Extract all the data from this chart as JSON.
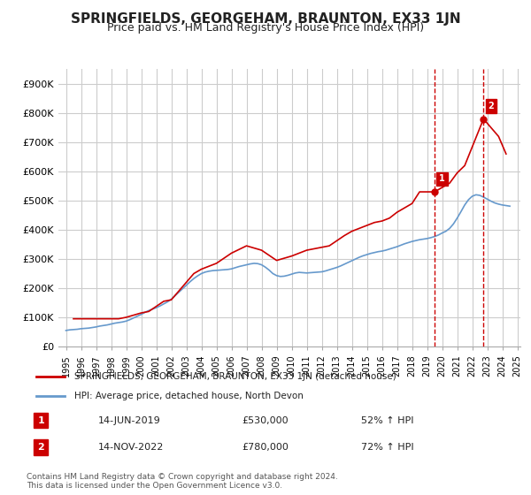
{
  "title": "SPRINGFIELDS, GEORGEHAM, BRAUNTON, EX33 1JN",
  "subtitle": "Price paid vs. HM Land Registry's House Price Index (HPI)",
  "title_fontsize": 11,
  "subtitle_fontsize": 9,
  "background_color": "#ffffff",
  "plot_bg_color": "#ffffff",
  "grid_color": "#cccccc",
  "red_line_color": "#cc0000",
  "blue_line_color": "#6699cc",
  "dashed_vline_color": "#cc0000",
  "annotation_box_color": "#cc0000",
  "legend_label_red": "SPRINGFIELDS, GEORGEHAM, BRAUNTON, EX33 1JN (detached house)",
  "legend_label_blue": "HPI: Average price, detached house, North Devon",
  "annotation1_label": "1",
  "annotation1_date": "14-JUN-2019",
  "annotation1_price": "£530,000",
  "annotation1_hpi": "52% ↑ HPI",
  "annotation2_label": "2",
  "annotation2_date": "14-NOV-2022",
  "annotation2_price": "£780,000",
  "annotation2_hpi": "72% ↑ HPI",
  "footer": "Contains HM Land Registry data © Crown copyright and database right 2024.\nThis data is licensed under the Open Government Licence v3.0.",
  "ylim": [
    0,
    950000
  ],
  "yticks": [
    0,
    100000,
    200000,
    300000,
    400000,
    500000,
    600000,
    700000,
    800000,
    900000
  ],
  "ytick_labels": [
    "£0",
    "£100K",
    "£200K",
    "£300K",
    "£400K",
    "£500K",
    "£600K",
    "£700K",
    "£800K",
    "£900K"
  ],
  "hpi_x": [
    1995.0,
    1995.25,
    1995.5,
    1995.75,
    1996.0,
    1996.25,
    1996.5,
    1996.75,
    1997.0,
    1997.25,
    1997.5,
    1997.75,
    1998.0,
    1998.25,
    1998.5,
    1998.75,
    1999.0,
    1999.25,
    1999.5,
    1999.75,
    2000.0,
    2000.25,
    2000.5,
    2000.75,
    2001.0,
    2001.25,
    2001.5,
    2001.75,
    2002.0,
    2002.25,
    2002.5,
    2002.75,
    2003.0,
    2003.25,
    2003.5,
    2003.75,
    2004.0,
    2004.25,
    2004.5,
    2004.75,
    2005.0,
    2005.25,
    2005.5,
    2005.75,
    2006.0,
    2006.25,
    2006.5,
    2006.75,
    2007.0,
    2007.25,
    2007.5,
    2007.75,
    2008.0,
    2008.25,
    2008.5,
    2008.75,
    2009.0,
    2009.25,
    2009.5,
    2009.75,
    2010.0,
    2010.25,
    2010.5,
    2010.75,
    2011.0,
    2011.25,
    2011.5,
    2011.75,
    2012.0,
    2012.25,
    2012.5,
    2012.75,
    2013.0,
    2013.25,
    2013.5,
    2013.75,
    2014.0,
    2014.25,
    2014.5,
    2014.75,
    2015.0,
    2015.25,
    2015.5,
    2015.75,
    2016.0,
    2016.25,
    2016.5,
    2016.75,
    2017.0,
    2017.25,
    2017.5,
    2017.75,
    2018.0,
    2018.25,
    2018.5,
    2018.75,
    2019.0,
    2019.25,
    2019.5,
    2019.75,
    2020.0,
    2020.25,
    2020.5,
    2020.75,
    2021.0,
    2021.25,
    2021.5,
    2021.75,
    2022.0,
    2022.25,
    2022.5,
    2022.75,
    2023.0,
    2023.25,
    2023.5,
    2023.75,
    2024.0,
    2024.25,
    2024.5
  ],
  "hpi_y": [
    55000,
    57000,
    58000,
    59000,
    61000,
    62000,
    63000,
    65000,
    67000,
    70000,
    72000,
    74000,
    77000,
    80000,
    82000,
    84000,
    87000,
    92000,
    98000,
    104000,
    110000,
    117000,
    123000,
    128000,
    133000,
    139000,
    146000,
    153000,
    162000,
    174000,
    186000,
    198000,
    210000,
    222000,
    233000,
    242000,
    250000,
    255000,
    258000,
    260000,
    261000,
    262000,
    263000,
    264000,
    266000,
    270000,
    274000,
    277000,
    280000,
    283000,
    285000,
    284000,
    280000,
    272000,
    262000,
    250000,
    243000,
    240000,
    241000,
    244000,
    248000,
    252000,
    254000,
    253000,
    252000,
    253000,
    254000,
    255000,
    256000,
    259000,
    263000,
    267000,
    271000,
    276000,
    282000,
    288000,
    294000,
    300000,
    306000,
    311000,
    315000,
    319000,
    322000,
    325000,
    327000,
    330000,
    334000,
    338000,
    342000,
    347000,
    352000,
    356000,
    360000,
    363000,
    366000,
    368000,
    370000,
    373000,
    377000,
    382000,
    389000,
    395000,
    405000,
    420000,
    440000,
    462000,
    485000,
    503000,
    515000,
    520000,
    518000,
    512000,
    505000,
    498000,
    492000,
    488000,
    485000,
    483000,
    481000
  ],
  "price_x": [
    1995.5,
    1998.5,
    1999.0,
    2000.0,
    2000.5,
    2001.5,
    2002.0,
    2003.5,
    2004.0,
    2005.0,
    2006.0,
    2007.0,
    2008.0,
    2009.0,
    2010.0,
    2011.0,
    2011.5,
    2012.5,
    2013.5,
    2014.0,
    2015.0,
    2015.5,
    2016.0,
    2016.5,
    2017.0,
    2017.5,
    2018.0,
    2018.5,
    2019.5,
    2020.5,
    2021.0,
    2021.5,
    2022.75,
    2023.25,
    2023.75,
    2024.25
  ],
  "price_y": [
    95000,
    95000,
    100000,
    115000,
    120000,
    155000,
    160000,
    250000,
    265000,
    285000,
    320000,
    345000,
    330000,
    295000,
    310000,
    330000,
    335000,
    345000,
    380000,
    395000,
    415000,
    425000,
    430000,
    440000,
    460000,
    475000,
    490000,
    530000,
    530000,
    560000,
    595000,
    620000,
    780000,
    750000,
    720000,
    660000
  ],
  "marker_x1": 2019.5,
  "marker_y1": 530000,
  "marker_x2": 2022.75,
  "marker_y2": 780000,
  "vline_x1": 2019.5,
  "vline_x2": 2022.75,
  "xlim": [
    1994.5,
    2025.2
  ],
  "xticks": [
    1995,
    1996,
    1997,
    1998,
    1999,
    2000,
    2001,
    2002,
    2003,
    2004,
    2005,
    2006,
    2007,
    2008,
    2009,
    2010,
    2011,
    2012,
    2013,
    2014,
    2015,
    2016,
    2017,
    2018,
    2019,
    2020,
    2021,
    2022,
    2023,
    2024,
    2025
  ]
}
